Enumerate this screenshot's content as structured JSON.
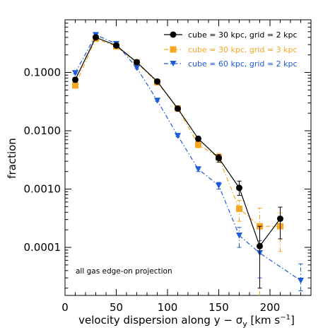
{
  "chart_data": {
    "type": "line",
    "xlabel_main": "velocity dispersion along y − σ",
    "xlabel_sub": "y",
    "xlabel_unit_pre": " [km s",
    "xlabel_unit_sup": "−1",
    "xlabel_unit_post": "]",
    "ylabel": "fraction",
    "x_scale": "linear",
    "y_scale": "log",
    "xlim": [
      0,
      240
    ],
    "ylim": [
      1.5e-05,
      0.8
    ],
    "x_ticks": [
      0,
      50,
      100,
      150,
      200
    ],
    "x_tick_labels": [
      "0",
      "50",
      "100",
      "150",
      "200"
    ],
    "y_ticks": [
      0.0001,
      0.001,
      0.01,
      0.1
    ],
    "y_tick_labels": [
      "0.0001",
      "0.0010",
      "0.0100",
      "0.1000"
    ],
    "grid": false,
    "legend_position": "top-right",
    "annotation": "all gas edge-on projection",
    "series": [
      {
        "name": "cube = 30 kpc, grid = 2 kpc",
        "color": "#000000",
        "marker": "circle",
        "line": "solid",
        "x": [
          10,
          30,
          50,
          70,
          90,
          110,
          130,
          150,
          170,
          190,
          210
        ],
        "y": [
          0.075,
          0.4,
          0.29,
          0.15,
          0.07,
          0.024,
          0.0073,
          0.0034,
          0.00105,
          0.000105,
          0.00031
        ],
        "yerr_lo": [
          0.068,
          0.385,
          0.275,
          0.142,
          0.066,
          0.0225,
          0.0066,
          0.0029,
          0.00078,
          2e-05,
          0.00014
        ],
        "yerr_hi": [
          0.082,
          0.415,
          0.305,
          0.158,
          0.074,
          0.0255,
          0.008,
          0.0039,
          0.00137,
          0.00023,
          0.00049
        ]
      },
      {
        "name": "cube = 30 kpc, grid = 3 kpc",
        "color": "#f5a623",
        "marker": "square",
        "line": "dashdot",
        "x": [
          10,
          30,
          50,
          70,
          90,
          110,
          130,
          150,
          170,
          190,
          210
        ],
        "y": [
          0.06,
          0.38,
          0.28,
          0.148,
          0.068,
          0.024,
          0.0058,
          0.0035,
          0.00046,
          0.00023,
          0.00023
        ],
        "yerr_lo": [
          0.054,
          0.365,
          0.268,
          0.14,
          0.064,
          0.0225,
          0.0051,
          0.0029,
          0.00028,
          1e-05,
          8.5e-05
        ],
        "yerr_hi": [
          0.066,
          0.395,
          0.292,
          0.156,
          0.072,
          0.0255,
          0.0066,
          0.0041,
          0.00064,
          0.00047,
          0.00039
        ]
      },
      {
        "name": "cube = 60 kpc, grid = 2 kpc",
        "color": "#1e5bd6",
        "marker": "triangle-down",
        "line": "dashdot",
        "x": [
          10,
          30,
          50,
          70,
          90,
          110,
          130,
          150,
          170,
          190,
          230
        ],
        "y": [
          0.098,
          0.44,
          0.31,
          0.12,
          0.033,
          0.0082,
          0.0022,
          0.00115,
          0.00016,
          8e-05,
          2.7e-05
        ],
        "yerr_lo": [
          0.094,
          0.432,
          0.302,
          0.116,
          0.032,
          0.0079,
          0.002,
          0.001,
          0.0001,
          3e-05,
          1.8e-05
        ],
        "yerr_hi": [
          0.102,
          0.448,
          0.318,
          0.124,
          0.034,
          0.0085,
          0.0024,
          0.0013,
          0.00022,
          0.00013,
          5.2e-05
        ]
      }
    ]
  }
}
